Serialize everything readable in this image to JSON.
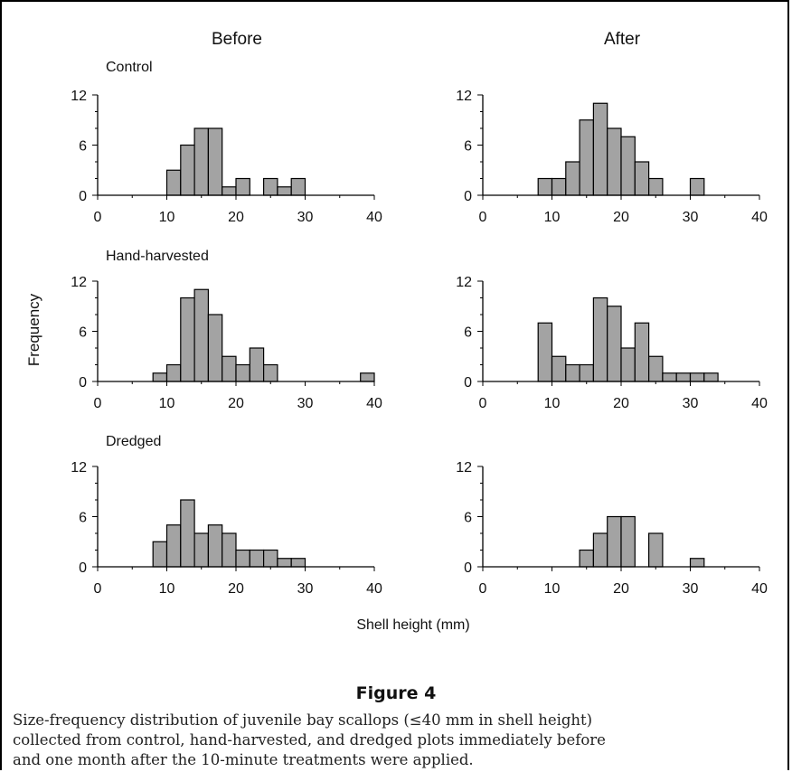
{
  "figure": {
    "title": "Figure 4",
    "caption_lines": [
      "Size-frequency distribution of juvenile bay scallops (≤40 mm in shell height)",
      "collected from control, hand-harvested, and dredged plots immediately before",
      "and one month after the 10-minute treatments were applied."
    ]
  },
  "chart_data": {
    "type": "bar",
    "column_titles": [
      "Before",
      "After"
    ],
    "row_titles": [
      "Control",
      "Hand-harvested",
      "Dredged"
    ],
    "xlabel": "Shell height (mm)",
    "ylabel": "Frequency",
    "xlim": [
      0,
      40
    ],
    "ylim": [
      0,
      12
    ],
    "xticks": [
      0,
      10,
      20,
      30,
      40
    ],
    "yticks": [
      0,
      6,
      12
    ],
    "bin_width": 2,
    "bar_color": "#a3a3a3",
    "panels": [
      {
        "row": "Control",
        "column": "Before",
        "bins": [
          10,
          12,
          14,
          16,
          18,
          20,
          22,
          24,
          26,
          28
        ],
        "values": [
          3,
          6,
          8,
          8,
          1,
          2,
          0,
          2,
          1,
          2
        ]
      },
      {
        "row": "Control",
        "column": "After",
        "bins": [
          8,
          10,
          12,
          14,
          16,
          18,
          20,
          22,
          24,
          26,
          28,
          30
        ],
        "values": [
          2,
          2,
          4,
          9,
          11,
          8,
          7,
          4,
          2,
          0,
          0,
          2
        ]
      },
      {
        "row": "Hand-harvested",
        "column": "Before",
        "bins": [
          8,
          10,
          12,
          14,
          16,
          18,
          20,
          22,
          24,
          26,
          28,
          30,
          32,
          34,
          36,
          38
        ],
        "values": [
          1,
          2,
          10,
          11,
          8,
          3,
          2,
          4,
          2,
          0,
          0,
          0,
          0,
          0,
          0,
          1
        ]
      },
      {
        "row": "Hand-harvested",
        "column": "After",
        "bins": [
          8,
          10,
          12,
          14,
          16,
          18,
          20,
          22,
          24,
          26,
          28,
          30,
          32
        ],
        "values": [
          7,
          3,
          2,
          2,
          10,
          9,
          4,
          7,
          3,
          1,
          1,
          1,
          1
        ]
      },
      {
        "row": "Dredged",
        "column": "Before",
        "bins": [
          8,
          10,
          12,
          14,
          16,
          18,
          20,
          22,
          24,
          26,
          28
        ],
        "values": [
          3,
          5,
          8,
          4,
          5,
          4,
          2,
          2,
          2,
          1,
          1
        ]
      },
      {
        "row": "Dredged",
        "column": "After",
        "bins": [
          14,
          16,
          18,
          20,
          22,
          24,
          26,
          28,
          30
        ],
        "values": [
          2,
          4,
          6,
          6,
          0,
          4,
          0,
          0,
          1
        ]
      }
    ]
  }
}
